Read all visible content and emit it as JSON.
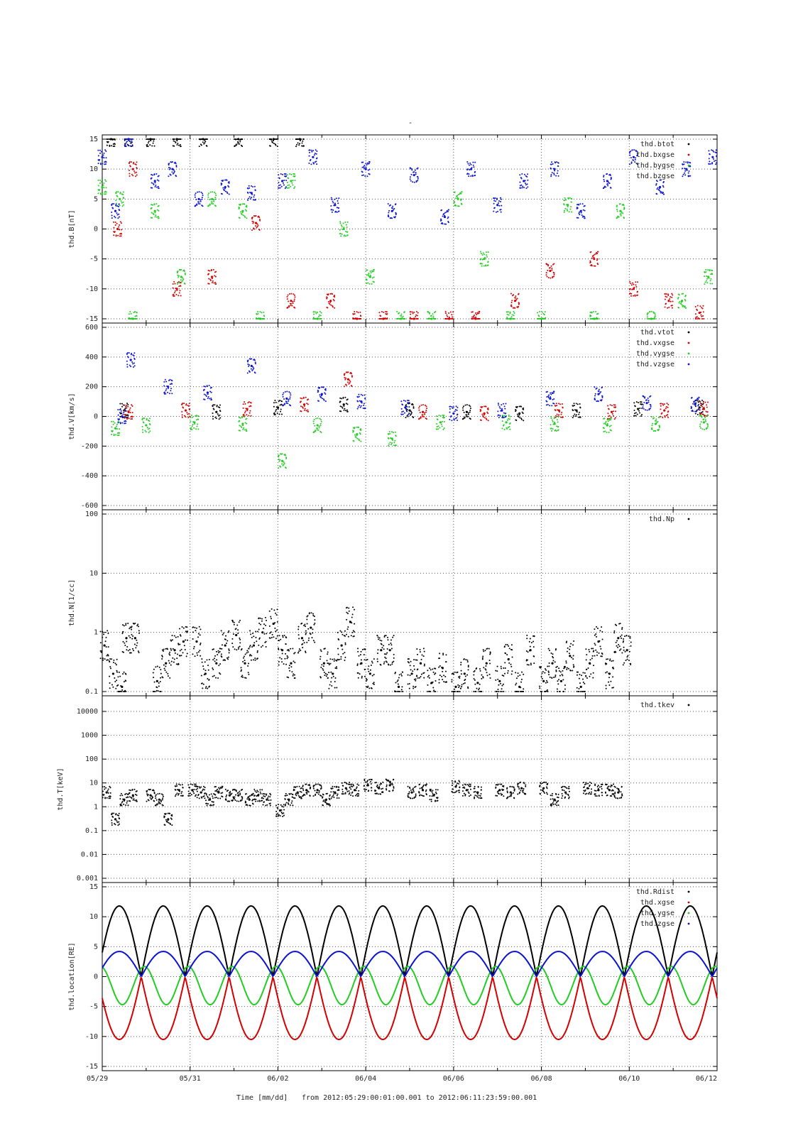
{
  "page": {
    "top_mark": "-"
  },
  "footer": {
    "xlabel": "Time [mm/dd]",
    "range_text": "from 2012:05:29:00:01:00.001  to  2012:06:11:23:59:00.001"
  },
  "x_ticks": [
    "05/29",
    "05/31",
    "06/02",
    "06/04",
    "06/06",
    "06/08",
    "06/10",
    "06/12"
  ],
  "colors": {
    "black": "#000000",
    "red": "#d40000",
    "green": "#22cc22",
    "blue": "#0a14d0",
    "grid": "#555555"
  },
  "chart_data": [
    {
      "type": "scatter",
      "ylabel": "thd.B[nT]",
      "ylim": [
        -15,
        15
      ],
      "yticks": [
        15,
        10,
        5,
        0,
        -5,
        -10,
        -15
      ],
      "xlim": [
        0,
        14
      ],
      "legend": [
        "thd.btot",
        "thd.bxgse",
        "thd.bygse",
        "thd.bzgse"
      ],
      "series": [
        {
          "name": "thd.btot",
          "color": "#000000",
          "x": [
            0.2,
            0.6,
            1.1,
            1.7,
            2.3,
            3.1,
            3.9,
            4.5
          ],
          "y": [
            15,
            15,
            15,
            15,
            15,
            15,
            15,
            15
          ]
        },
        {
          "name": "thd.bxgse",
          "color": "#d40000",
          "x": [
            0.35,
            0.7,
            1.7,
            2.5,
            3.5,
            4.3,
            5.2,
            5.8,
            6.4,
            7.1,
            7.9,
            8.5,
            9.4,
            10.2,
            11.2,
            12.1,
            12.9,
            13.6
          ],
          "y": [
            0,
            10,
            -10,
            -8,
            1,
            -12,
            -12,
            -15,
            -15,
            -15,
            -15,
            -15,
            -12,
            -7,
            -5,
            -10,
            -12,
            -14
          ]
        },
        {
          "name": "thd.bygse",
          "color": "#22cc22",
          "x": [
            0,
            0.4,
            0.7,
            1.2,
            1.8,
            2.5,
            3.2,
            3.6,
            4.3,
            4.9,
            5.5,
            6.1,
            6.8,
            7.5,
            8.1,
            8.7,
            9.3,
            10.0,
            10.6,
            11.2,
            11.8,
            12.5,
            13.2,
            13.8
          ],
          "y": [
            7,
            5,
            -15,
            3,
            -8,
            5,
            3,
            -15,
            8,
            -15,
            0,
            -8,
            -15,
            -15,
            5,
            -5,
            -15,
            -15,
            4,
            -15,
            3,
            -15,
            -12,
            -8
          ]
        },
        {
          "name": "thd.bzgse",
          "color": "#0a14d0",
          "x": [
            0,
            0.3,
            0.6,
            1.2,
            1.6,
            2.2,
            2.8,
            3.4,
            4.1,
            4.8,
            5.3,
            6.0,
            6.6,
            7.1,
            7.8,
            8.4,
            9.0,
            9.6,
            10.3,
            10.9,
            11.5,
            12.1,
            12.7,
            13.3,
            13.9
          ],
          "y": [
            12,
            3,
            15,
            8,
            10,
            5,
            7,
            6,
            8,
            12,
            4,
            10,
            3,
            9,
            2,
            10,
            4,
            8,
            10,
            3,
            8,
            12,
            7,
            10,
            12
          ]
        }
      ]
    },
    {
      "type": "scatter",
      "ylabel": "thd.V[km/s]",
      "ylim": [
        -600,
        600
      ],
      "yticks": [
        600,
        400,
        200,
        0,
        -200,
        -400,
        -600
      ],
      "xlim": [
        0,
        14
      ],
      "legend": [
        "thd.vtot",
        "thd.vxgse",
        "thd.vygse",
        "thd.vzgse"
      ],
      "series": [
        {
          "name": "thd.vtot",
          "color": "#000000",
          "x": [
            0.5,
            2.6,
            4.0,
            5.5,
            7.0,
            8.3,
            9.5,
            10.8,
            12.2,
            13.6
          ],
          "y": [
            40,
            30,
            60,
            80,
            40,
            30,
            20,
            40,
            50,
            60
          ]
        },
        {
          "name": "thd.vxgse",
          "color": "#d40000",
          "x": [
            0.6,
            1.9,
            3.3,
            4.6,
            5.6,
            7.3,
            8.7,
            10.4,
            11.6,
            12.8,
            13.7
          ],
          "y": [
            30,
            40,
            50,
            80,
            250,
            30,
            20,
            40,
            30,
            40,
            50
          ]
        },
        {
          "name": "thd.vygse",
          "color": "#22cc22",
          "x": [
            0.3,
            1.0,
            2.1,
            3.2,
            4.1,
            4.9,
            5.8,
            6.6,
            7.7,
            9.2,
            10.3,
            11.5,
            12.6,
            13.7
          ],
          "y": [
            -80,
            -60,
            -40,
            -50,
            -300,
            -60,
            -120,
            -150,
            -40,
            -40,
            -50,
            -60,
            -50,
            -40
          ]
        },
        {
          "name": "thd.vzgse",
          "color": "#0a14d0",
          "x": [
            0.45,
            0.65,
            1.5,
            2.4,
            3.4,
            4.2,
            5.0,
            5.9,
            6.9,
            8.0,
            9.1,
            10.2,
            11.3,
            12.4,
            13.5
          ],
          "y": [
            0,
            380,
            200,
            160,
            340,
            120,
            150,
            100,
            60,
            20,
            40,
            120,
            150,
            90,
            80
          ]
        }
      ]
    },
    {
      "type": "scatter",
      "ylabel": "thd.N[1/cc]",
      "yscale": "log",
      "ylim": [
        0.1,
        100
      ],
      "yticks": [
        100,
        10,
        1,
        0.1
      ],
      "xlim": [
        0,
        14
      ],
      "legend": [
        "thd.Np"
      ],
      "series": [
        {
          "name": "thd.Np",
          "color": "#000000",
          "x": [
            0.05,
            0.25,
            0.45,
            0.55,
            0.75,
            1.25,
            1.45,
            1.65,
            1.85,
            2.15,
            2.35,
            2.6,
            2.8,
            3.05,
            3.25,
            3.45,
            3.65,
            3.9,
            4.1,
            4.3,
            4.55,
            4.75,
            5.05,
            5.25,
            5.45,
            5.65,
            5.9,
            6.1,
            6.35,
            6.55,
            6.75,
            7.05,
            7.25,
            7.5,
            7.75,
            8.05,
            8.25,
            8.55,
            8.75,
            9.05,
            9.25,
            9.5,
            9.75,
            10.05,
            10.25,
            10.45,
            10.65,
            10.9,
            11.1,
            11.3,
            11.55,
            11.75,
            11.95
          ],
          "y": [
            0.6,
            0.2,
            0.12,
            0.8,
            0.8,
            0.15,
            0.3,
            0.5,
            0.7,
            0.7,
            0.2,
            0.3,
            0.6,
            0.9,
            0.3,
            0.6,
            1.0,
            1.4,
            0.5,
            0.3,
            0.8,
            1.2,
            0.3,
            0.2,
            0.6,
            1.5,
            0.3,
            0.2,
            0.5,
            0.5,
            0.12,
            0.2,
            0.3,
            0.14,
            0.25,
            0.12,
            0.2,
            0.14,
            0.3,
            0.15,
            0.35,
            0.12,
            0.5,
            0.15,
            0.3,
            0.15,
            0.4,
            0.12,
            0.3,
            0.7,
            0.2,
            0.8,
            0.5
          ]
        }
      ]
    },
    {
      "type": "scatter",
      "ylabel": "thd.T[keV]",
      "yscale": "log",
      "ylim": [
        0.001,
        30000
      ],
      "yticks": [
        10000,
        1000,
        100,
        10,
        1,
        0.1,
        0.01,
        0.001
      ],
      "xlim": [
        0,
        14
      ],
      "legend": [
        "thd.tkev"
      ],
      "series": [
        {
          "name": "thd.tkev",
          "color": "#000000",
          "x": [
            0.1,
            0.3,
            0.5,
            0.7,
            1.1,
            1.3,
            1.5,
            1.75,
            2.05,
            2.25,
            2.45,
            2.65,
            2.9,
            3.1,
            3.35,
            3.55,
            3.75,
            4.05,
            4.25,
            4.45,
            4.65,
            4.9,
            5.1,
            5.3,
            5.55,
            5.75,
            6.05,
            6.3,
            6.55,
            7.05,
            7.3,
            7.55,
            8.05,
            8.3,
            8.55,
            9.05,
            9.3,
            9.55,
            10.05,
            10.3,
            10.55,
            11.05,
            11.3,
            11.55,
            11.75
          ],
          "y": [
            4,
            0.3,
            2,
            3,
            3,
            2,
            0.3,
            5,
            5,
            4,
            2,
            4,
            3,
            3,
            2,
            3,
            2,
            0.7,
            2,
            4,
            5,
            5,
            2,
            4,
            6,
            5,
            8,
            6,
            8,
            4,
            5,
            3,
            7,
            5,
            4,
            5,
            4,
            6,
            6,
            2,
            4,
            6,
            5,
            5,
            4
          ]
        }
      ]
    },
    {
      "type": "line",
      "ylabel": "thd.location[RE]",
      "ylim": [
        -15,
        15
      ],
      "yticks": [
        15,
        10,
        5,
        0,
        -5,
        -10,
        -15
      ],
      "xlim": [
        0,
        14
      ],
      "period_days": 1.0,
      "legend": [
        "thd.Rdist",
        "thd.xgse",
        "thd.ygse",
        "thd.zgse"
      ],
      "series": [
        {
          "name": "thd.Rdist",
          "color": "#000000",
          "amplitude": 11.8,
          "phase": 0.0
        },
        {
          "name": "thd.xgse",
          "color": "#d40000",
          "amplitude": 10.5,
          "phase": 0.0
        },
        {
          "name": "thd.ygse",
          "color": "#22cc22",
          "amplitude": 5.8,
          "phase": 0.1
        },
        {
          "name": "thd.zgse",
          "color": "#0a14d0",
          "amplitude": 4.2,
          "phase": 0.0
        }
      ]
    }
  ]
}
